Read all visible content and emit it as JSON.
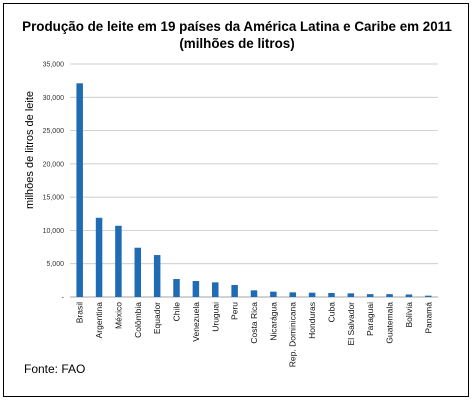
{
  "chart_data": {
    "type": "bar",
    "title": "Produção de leite em 19 países da América Latina e Caribe em 2011 (milhões de litros)",
    "xlabel": "",
    "ylabel": "milhões de litros de leite",
    "ylim": [
      0,
      35000
    ],
    "yticks": [
      "35,000",
      "30,000",
      "25,000",
      "20,000",
      "15,000",
      "10,000",
      "5,000",
      "-"
    ],
    "grid": true,
    "bar_color": "#1f6bb4",
    "categories": [
      "Brasil",
      "Argentina",
      "México",
      "Colômbia",
      "Equador",
      "Chile",
      "Venezuela",
      "Uruguai",
      "Peru",
      "Costa Rica",
      "Nicarágua",
      "Rep. Dominicana",
      "Honduras",
      "Cuba",
      "El Salvador",
      "Paraguai",
      "Guatemala",
      "Bolívia",
      "Panamá"
    ],
    "values": [
      32100,
      11900,
      10700,
      7400,
      6300,
      2700,
      2400,
      2200,
      1800,
      1000,
      800,
      700,
      650,
      600,
      550,
      430,
      430,
      380,
      200
    ]
  },
  "source": "Fonte: FAO"
}
